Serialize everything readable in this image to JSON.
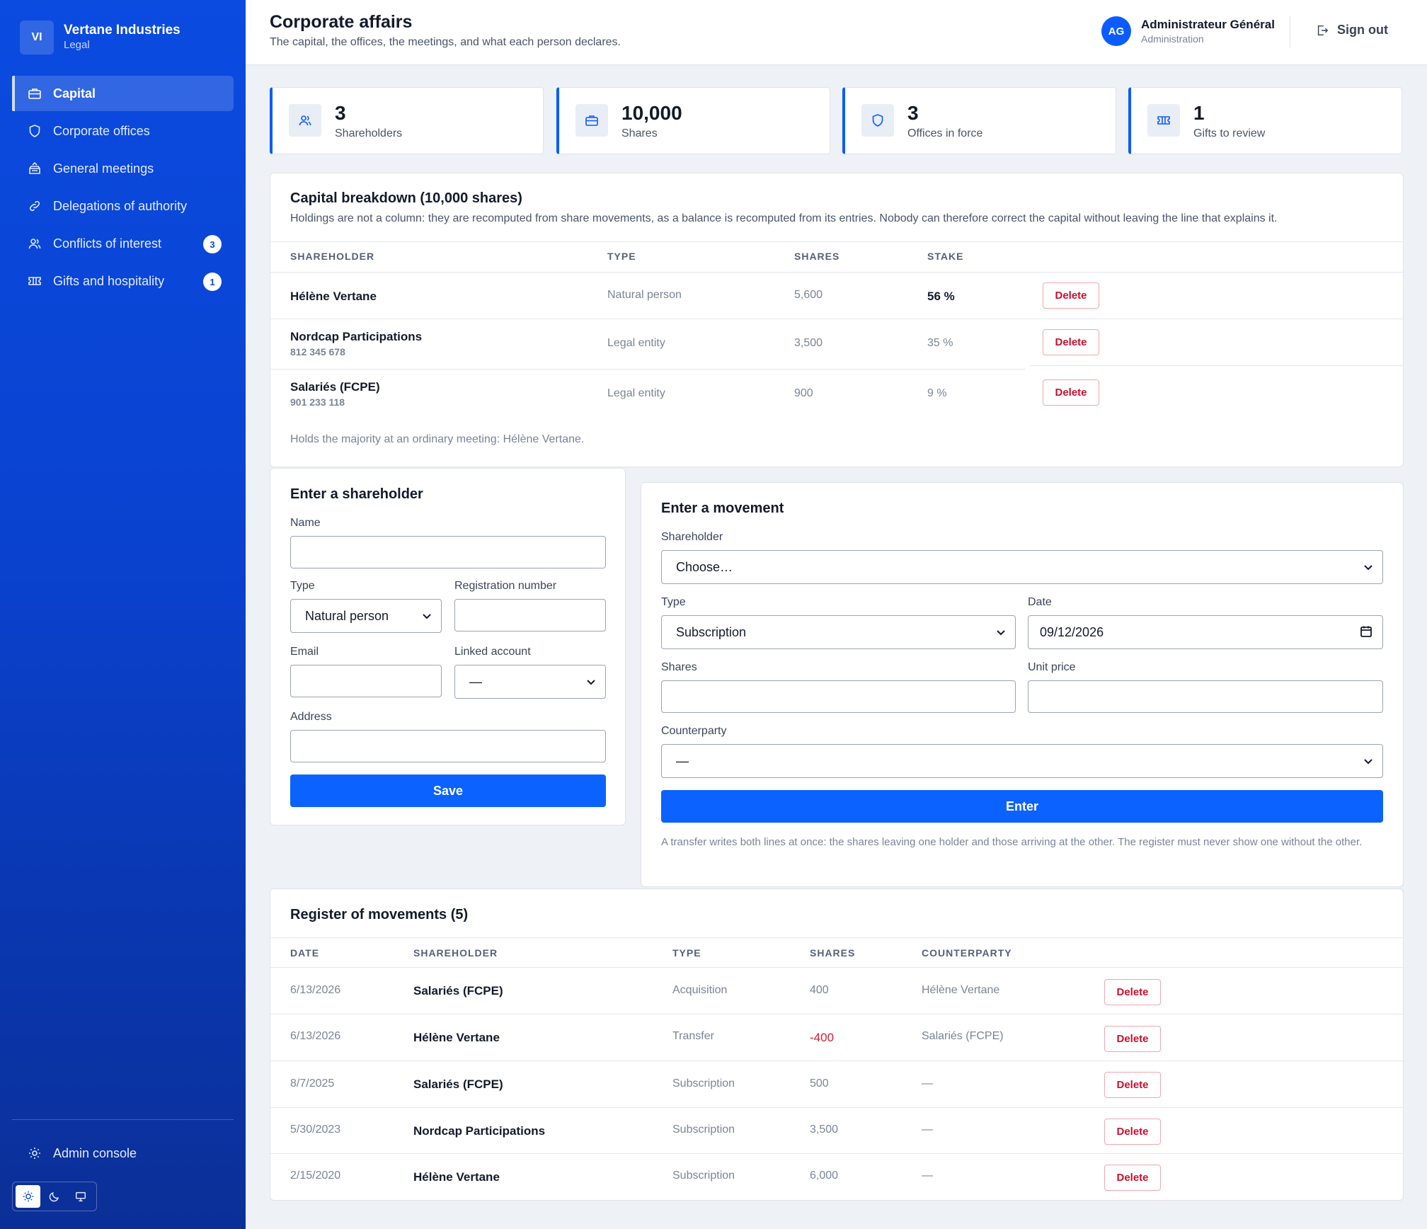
{
  "sidebar": {
    "brand_initials": "VI",
    "brand_name": "Vertane Industries",
    "brand_sub": "Legal",
    "items": [
      {
        "label": "Capital",
        "icon": "briefcase-icon",
        "active": true
      },
      {
        "label": "Corporate offices",
        "icon": "shield-icon"
      },
      {
        "label": "General meetings",
        "icon": "ballot-box-icon"
      },
      {
        "label": "Delegations of authority",
        "icon": "link-icon"
      },
      {
        "label": "Conflicts of interest",
        "icon": "users-icon",
        "badge": "3"
      },
      {
        "label": "Gifts and hospitality",
        "icon": "ticket-icon",
        "badge": "1"
      }
    ],
    "admin_label": "Admin console"
  },
  "header": {
    "title": "Corporate affairs",
    "subtitle": "The capital, the offices, the meetings, and what each person declares.",
    "user_initials": "AG",
    "user_name": "Administrateur Général",
    "user_role": "Administration",
    "signout_label": "Sign out"
  },
  "stats": [
    {
      "value": "3",
      "label": "Shareholders",
      "icon": "users-icon"
    },
    {
      "value": "10,000",
      "label": "Shares",
      "icon": "briefcase-icon"
    },
    {
      "value": "3",
      "label": "Offices in force",
      "icon": "shield-icon"
    },
    {
      "value": "1",
      "label": "Gifts to review",
      "icon": "ticket-icon"
    }
  ],
  "capital": {
    "title": "Capital breakdown (10,000 shares)",
    "description": "Holdings are not a column: they are recomputed from share movements, as a balance is recomputed from its entries. Nobody can therefore correct the capital without leaving the line that explains it.",
    "columns": [
      "SHAREHOLDER",
      "TYPE",
      "SHARES",
      "STAKE"
    ],
    "rows": [
      {
        "name": "Hélène Vertane",
        "reg": "",
        "type": "Natural person",
        "shares": "5,600",
        "stake": "56 %"
      },
      {
        "name": "Nordcap Participations",
        "reg": "812 345 678",
        "type": "Legal entity",
        "shares": "3,500",
        "stake": "35 %"
      },
      {
        "name": "Salariés (FCPE)",
        "reg": "901 233 118",
        "type": "Legal entity",
        "shares": "900",
        "stake": "9 %"
      }
    ],
    "delete_label": "Delete",
    "majority_note": "Holds the majority at an ordinary meeting: Hélène Vertane."
  },
  "shareholder_form": {
    "title": "Enter a shareholder",
    "name_label": "Name",
    "type_label": "Type",
    "type_value": "Natural person",
    "reg_label": "Registration number",
    "email_label": "Email",
    "account_label": "Linked account",
    "account_value": "—",
    "address_label": "Address",
    "save_label": "Save"
  },
  "movement_form": {
    "title": "Enter a movement",
    "shareholder_label": "Shareholder",
    "shareholder_value": "Choose…",
    "type_label": "Type",
    "type_value": "Subscription",
    "date_label": "Date",
    "date_value": "09/12/2026",
    "shares_label": "Shares",
    "price_label": "Unit price",
    "counterparty_label": "Counterparty",
    "counterparty_value": "—",
    "enter_label": "Enter",
    "note": "A transfer writes both lines at once: the shares leaving one holder and those arriving at the other. The register must never show one without the other."
  },
  "register": {
    "title": "Register of movements (5)",
    "columns": [
      "DATE",
      "SHAREHOLDER",
      "TYPE",
      "SHARES",
      "COUNTERPARTY"
    ],
    "rows": [
      {
        "date": "6/13/2026",
        "shareholder": "Salariés (FCPE)",
        "type": "Acquisition",
        "shares": "400",
        "counterparty": "Hélène Vertane"
      },
      {
        "date": "6/13/2026",
        "shareholder": "Hélène Vertane",
        "type": "Transfer",
        "shares": "-400",
        "counterparty": "Salariés (FCPE)"
      },
      {
        "date": "8/7/2025",
        "shareholder": "Salariés (FCPE)",
        "type": "Subscription",
        "shares": "500",
        "counterparty": "—"
      },
      {
        "date": "5/30/2023",
        "shareholder": "Nordcap Participations",
        "type": "Subscription",
        "shares": "3,500",
        "counterparty": "—"
      },
      {
        "date": "2/15/2020",
        "shareholder": "Hélène Vertane",
        "type": "Subscription",
        "shares": "6,000",
        "counterparty": "—"
      }
    ],
    "delete_label": "Delete"
  },
  "colors": {
    "accent": "#0b62ff",
    "sidebar": "#0b47d6",
    "danger": "#c8102e"
  }
}
